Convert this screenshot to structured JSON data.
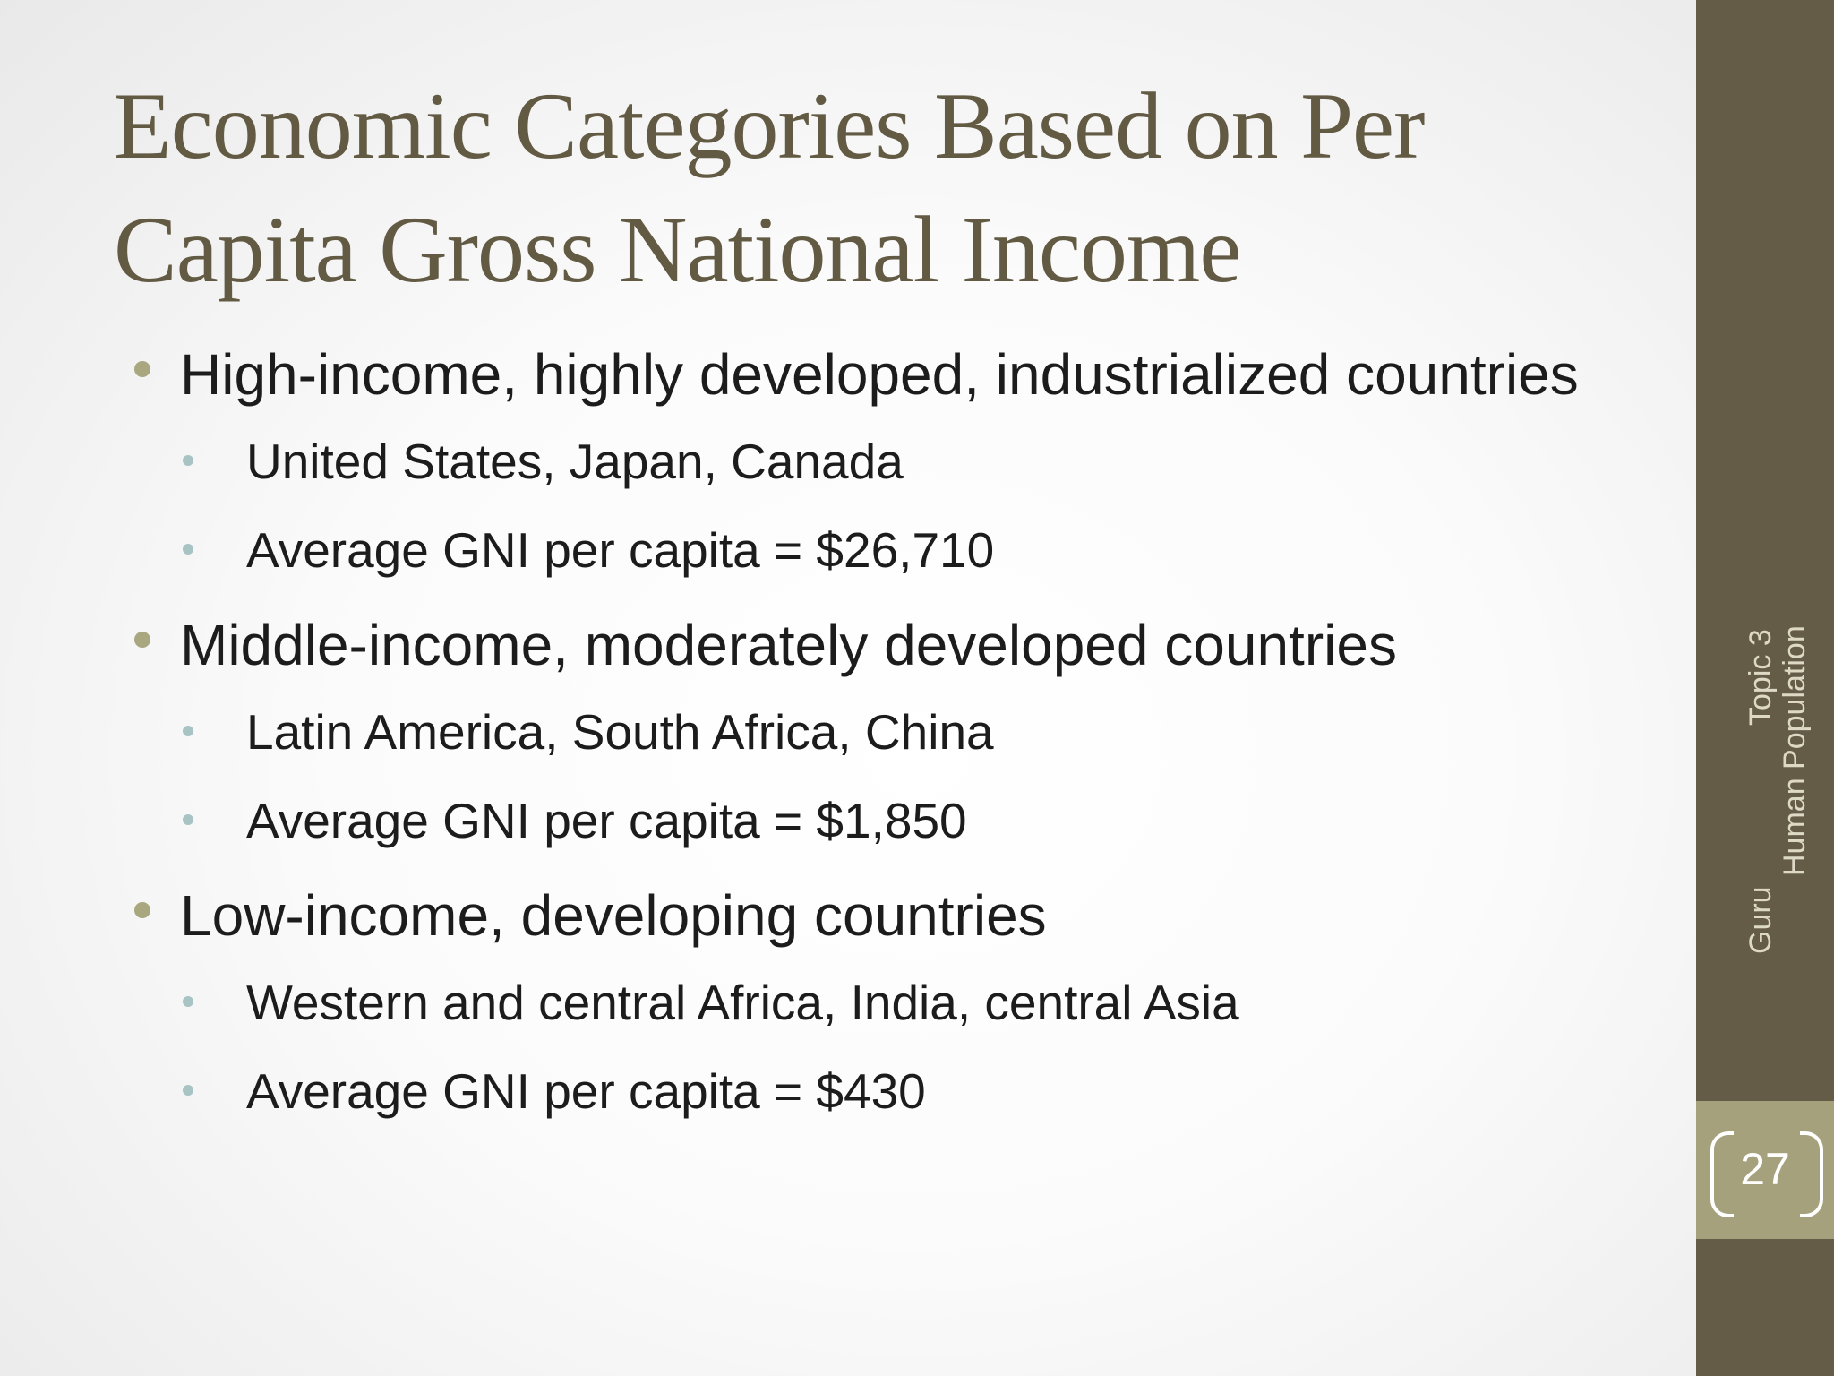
{
  "slide": {
    "title": "Economic Categories Based on Per Capita Gross National Income",
    "bullets": [
      {
        "text": "High-income, highly developed, industrialized countries",
        "sub": [
          "United States, Japan, Canada",
          "Average GNI per capita = $26,710"
        ]
      },
      {
        "text": "Middle-income, moderately developed countries",
        "sub": [
          "Latin America, South Africa, China",
          "Average GNI per capita = $1,850"
        ]
      },
      {
        "text": "Low-income, developing countries",
        "sub": [
          "Western and central Africa, India, central Asia",
          "Average GNI per capita = $430"
        ]
      }
    ]
  },
  "footer": {
    "line1": "Topic 3",
    "line2": "Human Population",
    "line3": "Guru"
  },
  "page_number": "27",
  "colors": {
    "title": "#625a43",
    "sidebar": "#655c48",
    "page_block": "#a6a17d",
    "bullet_level1": "#a8a77f",
    "bullet_level2": "#a7c3c4"
  }
}
